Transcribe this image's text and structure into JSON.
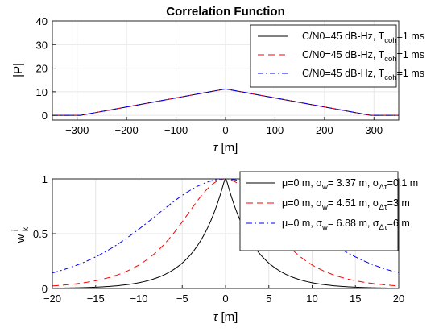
{
  "chart_data": [
    {
      "type": "line",
      "title": "Correlation Function",
      "xlabel": "τ [m]",
      "ylabel": "|P|",
      "xlim": [
        -350,
        350
      ],
      "ylim": [
        -2,
        40
      ],
      "xticks": [
        -300,
        -200,
        -100,
        0,
        100,
        200,
        300
      ],
      "yticks": [
        0,
        10,
        20,
        30,
        40
      ],
      "grid": true,
      "legend_position": "top-right",
      "series": [
        {
          "name_parts": [
            "C/N0=45 dB-Hz, T",
            "coh",
            "=1 ms"
          ],
          "color": "#000000",
          "dash": "",
          "x": [
            -350,
            -293,
            0,
            293,
            350
          ],
          "y": [
            0,
            0,
            11.2,
            0,
            0
          ]
        },
        {
          "name_parts": [
            "C/N0=45 dB-Hz, T",
            "coh",
            "=1 ms"
          ],
          "color": "#ff0000",
          "dash": "8,5",
          "x": [
            -350,
            -293,
            0,
            293,
            350
          ],
          "y": [
            0,
            0,
            11.2,
            0,
            0
          ]
        },
        {
          "name_parts": [
            "C/N0=45 dB-Hz, T",
            "coh",
            "=1 ms"
          ],
          "color": "#0000ff",
          "dash": "7,3,2,3",
          "x": [
            -350,
            -293,
            0,
            293,
            350
          ],
          "y": [
            0,
            0,
            11.2,
            0,
            0
          ]
        }
      ]
    },
    {
      "type": "line",
      "title": "",
      "xlabel": "τ [m]",
      "ylabel_main": "w",
      "ylabel_sub": "k",
      "ylabel_sup": "i",
      "xlim": [
        -20,
        20
      ],
      "ylim": [
        0,
        1
      ],
      "xticks": [
        -20,
        -15,
        -10,
        -5,
        0,
        5,
        10,
        15,
        20
      ],
      "yticks": [
        0,
        0.5,
        1
      ],
      "grid": true,
      "legend_position": "top-right",
      "series": [
        {
          "mu": 0,
          "sigma_w": 3.37,
          "sigma_dtau": 0.1,
          "color": "#000000",
          "dash": "",
          "legend": {
            "p1": "μ=0 m, σ",
            "s1": "w",
            "p2": "= 3.37 m, σ",
            "s2": "Δτ",
            "p3": "=0.1 m"
          }
        },
        {
          "mu": 0,
          "sigma_w": 4.51,
          "sigma_dtau": 3,
          "color": "#ff0000",
          "dash": "8,5",
          "legend": {
            "p1": "μ=0 m, σ",
            "s1": "w",
            "p2": "= 4.51 m, σ",
            "s2": "Δτ",
            "p3": "=3 m"
          }
        },
        {
          "mu": 0,
          "sigma_w": 6.88,
          "sigma_dtau": 6,
          "color": "#0000ff",
          "dash": "7,3,2,3",
          "legend": {
            "p1": "μ=0 m, σ",
            "s1": "w",
            "p2": "= 6.88 m, σ",
            "s2": "Δτ",
            "p3": "=6 m"
          }
        }
      ]
    }
  ]
}
